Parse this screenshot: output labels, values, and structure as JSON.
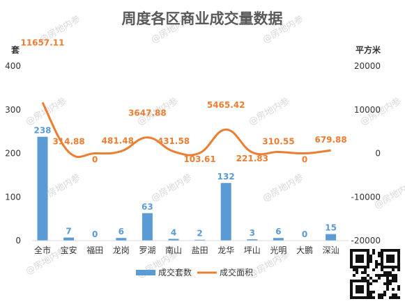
{
  "chart_data": {
    "type": "bar",
    "title": "周度各区商业成交量数据",
    "categories": [
      "全市",
      "宝安",
      "福田",
      "龙岗",
      "罗湖",
      "南山",
      "盐田",
      "龙华",
      "坪山",
      "光明",
      "大鹏",
      "深汕"
    ],
    "left_unit": "套",
    "right_unit": "平方米",
    "ylim_left": [
      0,
      400
    ],
    "yticks_left": [
      "0",
      "100",
      "200",
      "300",
      "400"
    ],
    "ylim_right": [
      -20000,
      20000
    ],
    "yticks_right": [
      "-20000",
      "-10000",
      "0",
      "10000",
      "20000"
    ],
    "legend_position": "bottom",
    "series": [
      {
        "name": "成交套数",
        "type": "bar",
        "axis": "left",
        "color": "#5b9bd5",
        "values": [
          238,
          7,
          0,
          6,
          63,
          4,
          2,
          132,
          3,
          6,
          0,
          15
        ],
        "labels": [
          "238",
          "7",
          "0",
          "6",
          "63",
          "4",
          "2",
          "132",
          "3",
          "6",
          "0",
          "15"
        ]
      },
      {
        "name": "成交面积",
        "type": "line",
        "axis": "right",
        "color": "#ed7d31",
        "values": [
          11657.11,
          314.88,
          0,
          481.48,
          3647.88,
          431.58,
          103.61,
          5465.42,
          221.83,
          310.55,
          0,
          679.88
        ],
        "labels": [
          "11657.11",
          "314.88",
          "0",
          "481.48",
          "3647.88",
          "431.58",
          "103.61",
          "5465.42",
          "221.83",
          "310.55",
          "0",
          "679.88"
        ]
      }
    ]
  },
  "watermark": "@房地内参"
}
